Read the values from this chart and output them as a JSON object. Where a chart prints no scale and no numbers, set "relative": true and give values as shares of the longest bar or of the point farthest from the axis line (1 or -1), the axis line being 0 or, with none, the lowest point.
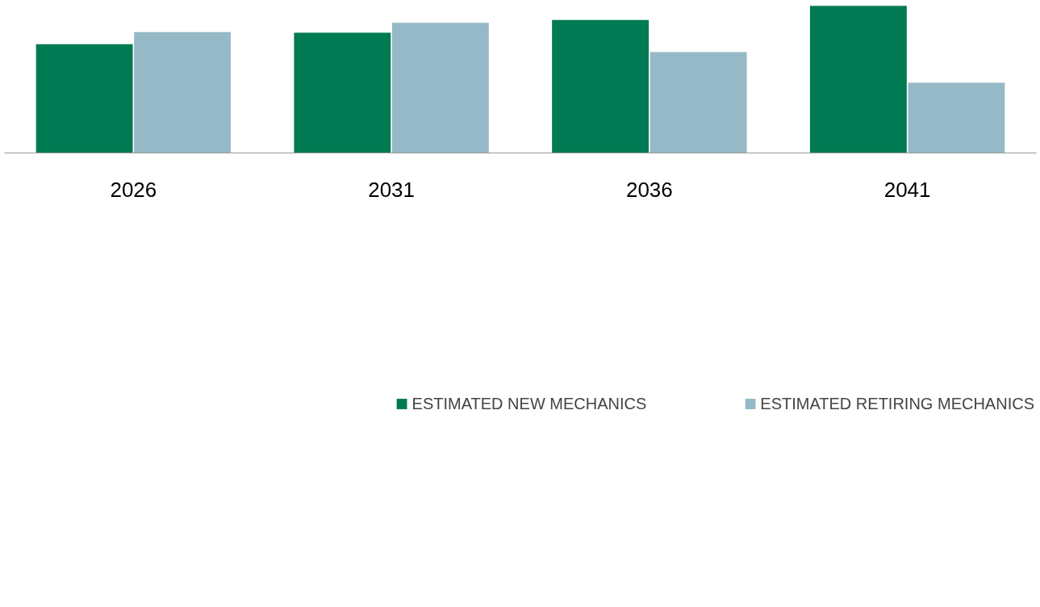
{
  "chart_data": {
    "type": "bar",
    "relative": true,
    "categories": [
      "2026",
      "2031",
      "2036",
      "2041"
    ],
    "series": [
      {
        "name": "ESTIMATED NEW MECHANICS",
        "color": "#007a53",
        "values": [
          0.739,
          0.818,
          0.904,
          1.0
        ]
      },
      {
        "name": "ESTIMATED RETIRING MECHANICS",
        "color": "#95b9c7",
        "values": [
          0.822,
          0.885,
          0.686,
          0.478
        ]
      }
    ],
    "legend": "bottom",
    "grid": false
  }
}
